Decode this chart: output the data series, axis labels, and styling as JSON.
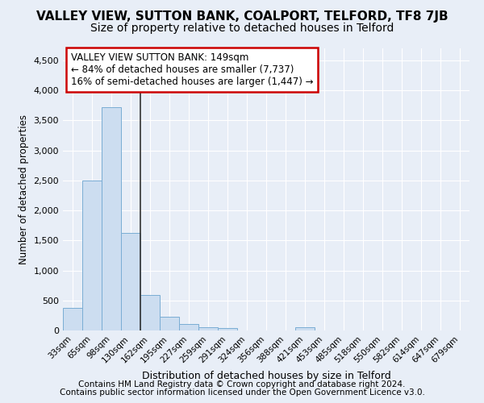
{
  "title": "VALLEY VIEW, SUTTON BANK, COALPORT, TELFORD, TF8 7JB",
  "subtitle": "Size of property relative to detached houses in Telford",
  "xlabel": "Distribution of detached houses by size in Telford",
  "ylabel": "Number of detached properties",
  "footnote1": "Contains HM Land Registry data © Crown copyright and database right 2024.",
  "footnote2": "Contains public sector information licensed under the Open Government Licence v3.0.",
  "categories": [
    "33sqm",
    "65sqm",
    "98sqm",
    "130sqm",
    "162sqm",
    "195sqm",
    "227sqm",
    "259sqm",
    "291sqm",
    "324sqm",
    "356sqm",
    "388sqm",
    "421sqm",
    "453sqm",
    "485sqm",
    "518sqm",
    "550sqm",
    "582sqm",
    "614sqm",
    "647sqm",
    "679sqm"
  ],
  "values": [
    370,
    2500,
    3720,
    1630,
    590,
    225,
    105,
    60,
    35,
    5,
    0,
    0,
    50,
    0,
    0,
    0,
    0,
    0,
    0,
    0,
    0
  ],
  "bar_color": "#ccddf0",
  "bar_edge_color": "#7aadd4",
  "annotation_title": "VALLEY VIEW SUTTON BANK: 149sqm",
  "annotation_line1": "← 84% of detached houses are smaller (7,737)",
  "annotation_line2": "16% of semi-detached houses are larger (1,447) →",
  "annotation_box_color": "#ffffff",
  "annotation_box_edge": "#cc0000",
  "vertical_line_color": "#333333",
  "property_bar_index": 3,
  "ylim": [
    0,
    4700
  ],
  "yticks": [
    0,
    500,
    1000,
    1500,
    2000,
    2500,
    3000,
    3500,
    4000,
    4500
  ],
  "background_color": "#e8eef7",
  "grid_color": "#ffffff",
  "title_fontsize": 11,
  "subtitle_fontsize": 10,
  "footnote_fontsize": 7.5
}
